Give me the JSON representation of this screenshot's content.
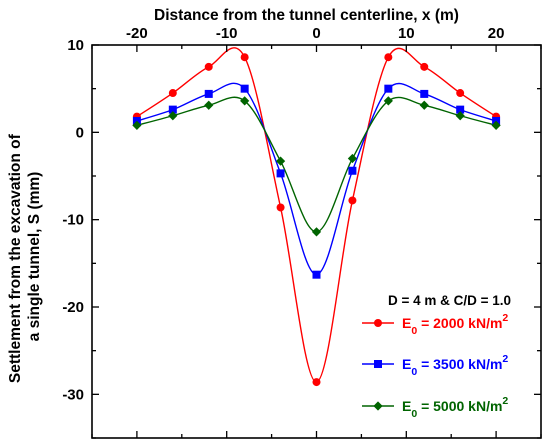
{
  "chart_data": {
    "type": "line",
    "xlabel": "Distance from the tunnel centerline, x (m)",
    "ylabel_lines": [
      "Settlement from the excavation of",
      "a single tunnel, S (mm)"
    ],
    "xlim": [
      -25,
      25
    ],
    "ylim": [
      -35,
      10
    ],
    "x_ticks": [
      -20,
      -10,
      0,
      10,
      20
    ],
    "y_ticks": [
      10,
      0,
      -10,
      -20,
      -30
    ],
    "x_axis_position": "top",
    "grid": false,
    "annotation": "D = 4 m & C/D = 1.0",
    "legend_position": "bottom-right",
    "x": [
      -20,
      -16,
      -12,
      -8,
      -4,
      0,
      4,
      8,
      12,
      16,
      20
    ],
    "series": [
      {
        "name": "E0 = 2000 kN/m2",
        "name_parts": {
          "base": "E",
          "sub": "0",
          "rest": " = 2000 kN/m",
          "sup": "2"
        },
        "color": "#ff0000",
        "marker": "circle",
        "values": [
          1.8,
          4.5,
          7.5,
          8.6,
          -8.6,
          -28.6,
          -7.8,
          8.6,
          7.5,
          4.5,
          1.8
        ]
      },
      {
        "name": "E0 = 3500 kN/m2",
        "name_parts": {
          "base": "E",
          "sub": "0",
          "rest": " = 3500 kN/m",
          "sup": "2"
        },
        "color": "#0000ff",
        "marker": "square",
        "values": [
          1.3,
          2.6,
          4.4,
          5.0,
          -4.7,
          -16.3,
          -4.4,
          5.0,
          4.4,
          2.6,
          1.3
        ]
      },
      {
        "name": "E0 = 5000 kN/m2",
        "name_parts": {
          "base": "E",
          "sub": "0",
          "rest": " = 5000 kN/m",
          "sup": "2"
        },
        "color": "#006400",
        "marker": "diamond",
        "values": [
          0.8,
          1.9,
          3.1,
          3.6,
          -3.3,
          -11.4,
          -3.0,
          3.6,
          3.1,
          1.9,
          0.8
        ]
      }
    ]
  }
}
